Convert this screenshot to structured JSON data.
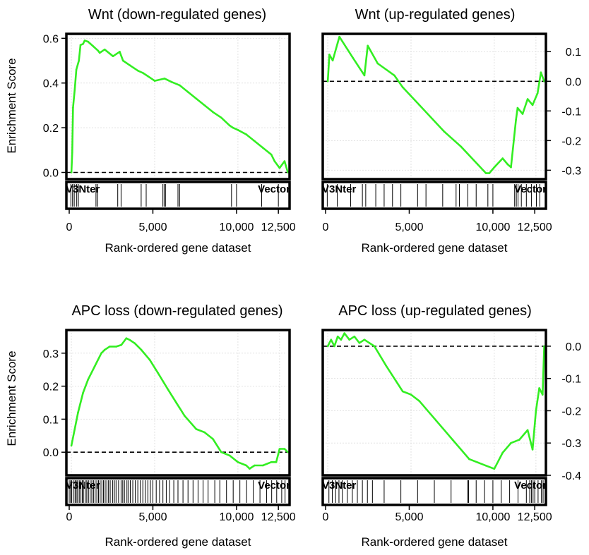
{
  "figure": {
    "ylabel": "Enrichment Score",
    "xlabel": "Rank-ordered gene dataset",
    "left_end_label": "V3Nter",
    "right_end_label": "Vector",
    "x_ticks": [
      "0",
      "5,000",
      "10,000",
      "12,500"
    ],
    "line_color": "#33ee22",
    "frame_color": "#000000"
  },
  "chart_data": [
    {
      "type": "line",
      "title": "Wnt (down-regulated genes)",
      "ylabel": "Enrichment Score",
      "xlabel": "Rank-ordered gene dataset",
      "x_range": [
        0,
        13000
      ],
      "xlim": [
        -300,
        13100
      ],
      "ylim": [
        -0.03,
        0.62
      ],
      "y_ticks": [
        0.0,
        0.2,
        0.4,
        0.6
      ],
      "y_tick_labels": [
        "0.0",
        "0.2",
        "0.4",
        "0.6"
      ],
      "y_axis_side": "left",
      "series": [
        {
          "x": [
            0,
            50,
            100,
            200,
            300,
            450,
            550,
            700,
            800,
            1000,
            1300,
            1600,
            1700,
            2000,
            2500,
            2900,
            3100,
            3500,
            4000,
            4300,
            4600,
            5000,
            5600,
            6000,
            6500,
            7000,
            7500,
            8000,
            8500,
            9000,
            9500,
            9700,
            10000,
            10500,
            11000,
            11500,
            12000,
            12200,
            12500,
            12800,
            13000
          ],
          "y": [
            0.0,
            0.09,
            0.29,
            0.37,
            0.46,
            0.5,
            0.57,
            0.575,
            0.59,
            0.585,
            0.565,
            0.545,
            0.535,
            0.55,
            0.52,
            0.54,
            0.5,
            0.48,
            0.455,
            0.445,
            0.43,
            0.41,
            0.42,
            0.405,
            0.39,
            0.36,
            0.33,
            0.3,
            0.27,
            0.245,
            0.21,
            0.2,
            0.19,
            0.17,
            0.14,
            0.11,
            0.08,
            0.05,
            0.02,
            0.05,
            0.0
          ]
        }
      ],
      "gene_hits": [
        100,
        200,
        300,
        450,
        550,
        1600,
        1700,
        2900,
        3100,
        4300,
        4600,
        5600,
        5700,
        5750,
        6500,
        6600,
        9700,
        10000,
        11500,
        12500
      ]
    },
    {
      "type": "line",
      "title": "Wnt (up-regulated genes)",
      "ylabel": "Enrichment Score",
      "xlabel": "Rank-ordered gene dataset",
      "x_range": [
        0,
        13000
      ],
      "xlim": [
        -300,
        13100
      ],
      "ylim": [
        -0.33,
        0.16
      ],
      "y_ticks": [
        -0.3,
        -0.2,
        -0.1,
        0.0,
        0.1
      ],
      "y_tick_labels": [
        "-0.3",
        "-0.2",
        "-0.1",
        "0.0",
        "0.1"
      ],
      "y_axis_side": "right",
      "series": [
        {
          "x": [
            0,
            100,
            300,
            600,
            700,
            1500,
            2200,
            2400,
            3000,
            4000,
            4500,
            5500,
            7000,
            8000,
            9000,
            9500,
            9700,
            10000,
            10500,
            10800,
            11000,
            11300,
            11400,
            11700,
            12000,
            12300,
            12600,
            12800,
            13000
          ],
          "y": [
            0.0,
            0.09,
            0.07,
            0.13,
            0.15,
            0.08,
            0.02,
            0.12,
            0.06,
            0.02,
            -0.02,
            -0.08,
            -0.17,
            -0.22,
            -0.28,
            -0.31,
            -0.31,
            -0.29,
            -0.26,
            -0.28,
            -0.29,
            -0.13,
            -0.09,
            -0.11,
            -0.06,
            -0.08,
            -0.04,
            0.03,
            0.0
          ]
        }
      ],
      "gene_hits": [
        100,
        700,
        1500,
        2200,
        2400,
        3000,
        3500,
        4000,
        4500,
        5500,
        6000,
        7000,
        7800,
        8000,
        8500,
        9000,
        9700,
        10000,
        11300,
        11400,
        11500,
        11700,
        12000,
        12300,
        12600,
        12800
      ]
    },
    {
      "type": "line",
      "title": "APC loss (down-regulated genes)",
      "ylabel": "Enrichment Score",
      "xlabel": "Rank-ordered gene dataset",
      "x_range": [
        0,
        13000
      ],
      "xlim": [
        -300,
        13100
      ],
      "ylim": [
        -0.07,
        0.37
      ],
      "y_ticks": [
        0.0,
        0.1,
        0.2,
        0.3
      ],
      "y_tick_labels": [
        "0.0",
        "0.1",
        "0.2",
        "0.3"
      ],
      "y_axis_side": "left",
      "series": [
        {
          "x": [
            0,
            200,
            400,
            700,
            1000,
            1400,
            1800,
            2000,
            2300,
            2700,
            3000,
            3300,
            3500,
            3800,
            4200,
            4700,
            5200,
            5800,
            6300,
            6800,
            7500,
            8000,
            8500,
            9000,
            9500,
            10000,
            10500,
            10700,
            11000,
            11500,
            12000,
            12300,
            12500,
            12800,
            13000
          ],
          "y": [
            0.02,
            0.07,
            0.12,
            0.18,
            0.22,
            0.26,
            0.3,
            0.31,
            0.32,
            0.32,
            0.325,
            0.345,
            0.34,
            0.33,
            0.31,
            0.28,
            0.24,
            0.19,
            0.15,
            0.11,
            0.07,
            0.06,
            0.04,
            0.0,
            -0.01,
            -0.03,
            -0.04,
            -0.05,
            -0.04,
            -0.04,
            -0.03,
            -0.03,
            0.01,
            0.01,
            0.0
          ]
        }
      ],
      "gene_hits": [
        0,
        80,
        150,
        250,
        350,
        420,
        500,
        600,
        700,
        780,
        850,
        950,
        1050,
        1150,
        1250,
        1350,
        1450,
        1550,
        1650,
        1750,
        1850,
        1950,
        2050,
        2150,
        2250,
        2350,
        2450,
        2600,
        2700,
        2800,
        2950,
        3100,
        3200,
        3300,
        3450,
        3550,
        3650,
        3800,
        3950,
        4100,
        4250,
        4400,
        4550,
        4700,
        4850,
        5000,
        5200,
        5400,
        5600,
        5800,
        6000,
        6250,
        6500,
        6800,
        7100,
        7400,
        7700,
        8000,
        8300,
        8700,
        9000,
        9400,
        9800,
        10200,
        10600,
        11000,
        11400,
        11800,
        12100,
        12400,
        12700,
        12900
      ]
    },
    {
      "type": "line",
      "title": "APC loss (up-regulated genes)",
      "ylabel": "Enrichment Score",
      "xlabel": "Rank-ordered gene dataset",
      "x_range": [
        0,
        13000
      ],
      "xlim": [
        -300,
        13100
      ],
      "ylim": [
        -0.4,
        0.05
      ],
      "y_ticks": [
        -0.4,
        -0.3,
        -0.2,
        -0.1,
        0.0
      ],
      "y_tick_labels": [
        "-0.4",
        "-0.3",
        "-0.2",
        "-0.1",
        "0.0"
      ],
      "y_axis_side": "right",
      "series": [
        {
          "x": [
            0,
            200,
            400,
            600,
            800,
            1000,
            1300,
            1600,
            1900,
            2200,
            2500,
            2800,
            3500,
            4500,
            5000,
            5500,
            6500,
            7500,
            8500,
            9000,
            9500,
            10000,
            10500,
            11000,
            11500,
            12000,
            12300,
            12500,
            12700,
            12900,
            13000
          ],
          "y": [
            0.0,
            0.02,
            0.0,
            0.03,
            0.02,
            0.04,
            0.02,
            0.03,
            0.01,
            0.02,
            0.01,
            0.0,
            -0.06,
            -0.14,
            -0.15,
            -0.17,
            -0.23,
            -0.29,
            -0.35,
            -0.36,
            -0.37,
            -0.38,
            -0.33,
            -0.3,
            -0.29,
            -0.26,
            -0.32,
            -0.2,
            -0.13,
            -0.15,
            0.0
          ]
        }
      ],
      "gene_hits": [
        200,
        400,
        600,
        800,
        1000,
        1300,
        1600,
        1900,
        2200,
        2500,
        2800,
        3500,
        4500,
        5500,
        6500,
        7500,
        8500,
        8550,
        9000,
        9500,
        10000,
        10500,
        11000,
        11500,
        12000,
        12200,
        12300,
        12400,
        12500,
        12700,
        12900,
        13000
      ]
    }
  ]
}
